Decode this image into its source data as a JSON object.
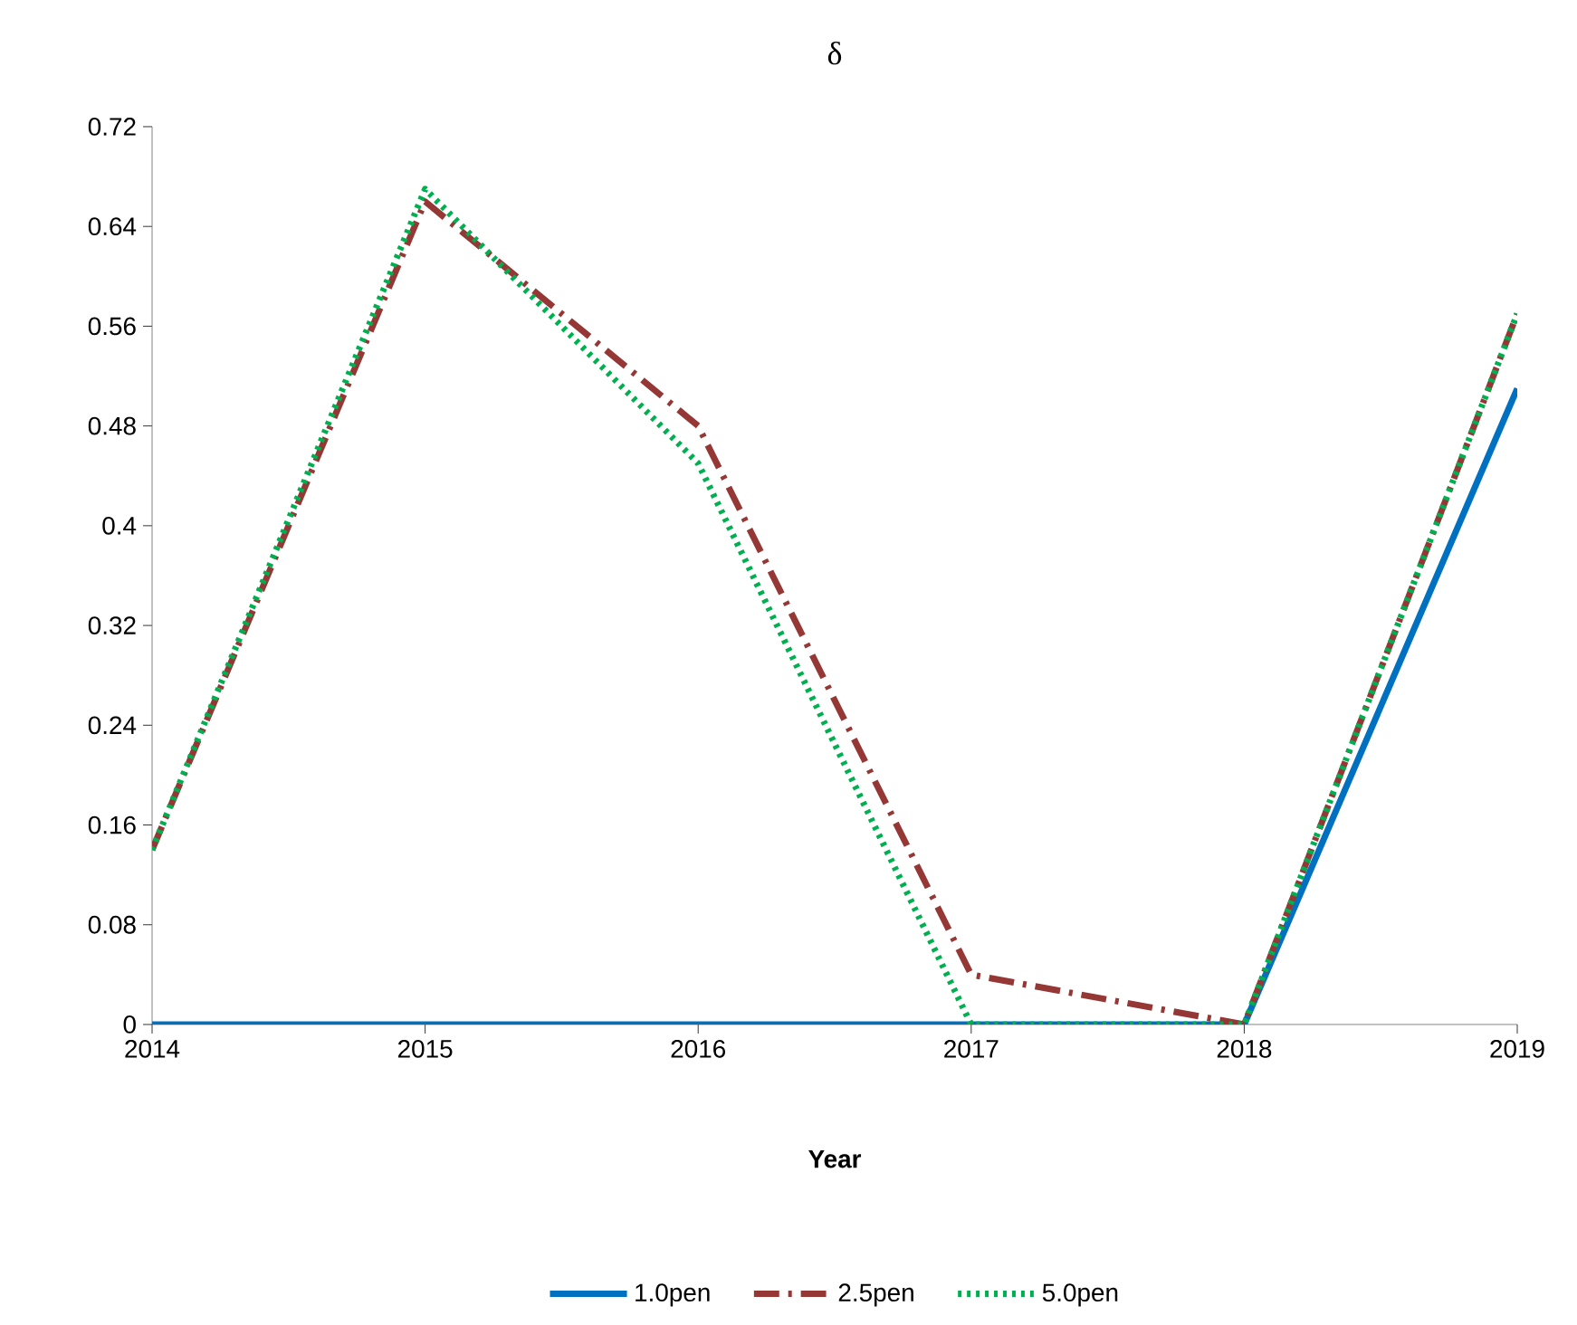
{
  "chart_data": {
    "type": "line",
    "title": "δ",
    "xlabel": "Year",
    "x": [
      2014,
      2015,
      2016,
      2017,
      2018,
      2019
    ],
    "series": [
      {
        "name": "1.0pen",
        "color": "#0070c0",
        "line_style": "solid",
        "values": [
          0,
          0,
          0,
          0,
          0,
          0.51
        ]
      },
      {
        "name": "2.5pen",
        "color": "#953735",
        "line_style": "dashed",
        "values": [
          0.14,
          0.66,
          0.48,
          0.04,
          0,
          0.57
        ]
      },
      {
        "name": "5.0pen",
        "color": "#00b050",
        "line_style": "dotted",
        "values": [
          0.14,
          0.67,
          0.45,
          0,
          0,
          0.57
        ]
      }
    ],
    "xlim": [
      2014,
      2019
    ],
    "xticks": [
      2014,
      2015,
      2016,
      2017,
      2018,
      2019
    ],
    "ylim": [
      0,
      0.72
    ],
    "yticks": [
      0,
      0.08,
      0.16,
      0.24,
      0.32,
      0.4,
      0.48,
      0.56,
      0.64,
      0.72
    ],
    "grid": false,
    "legend": "bottom",
    "marker": "none"
  }
}
